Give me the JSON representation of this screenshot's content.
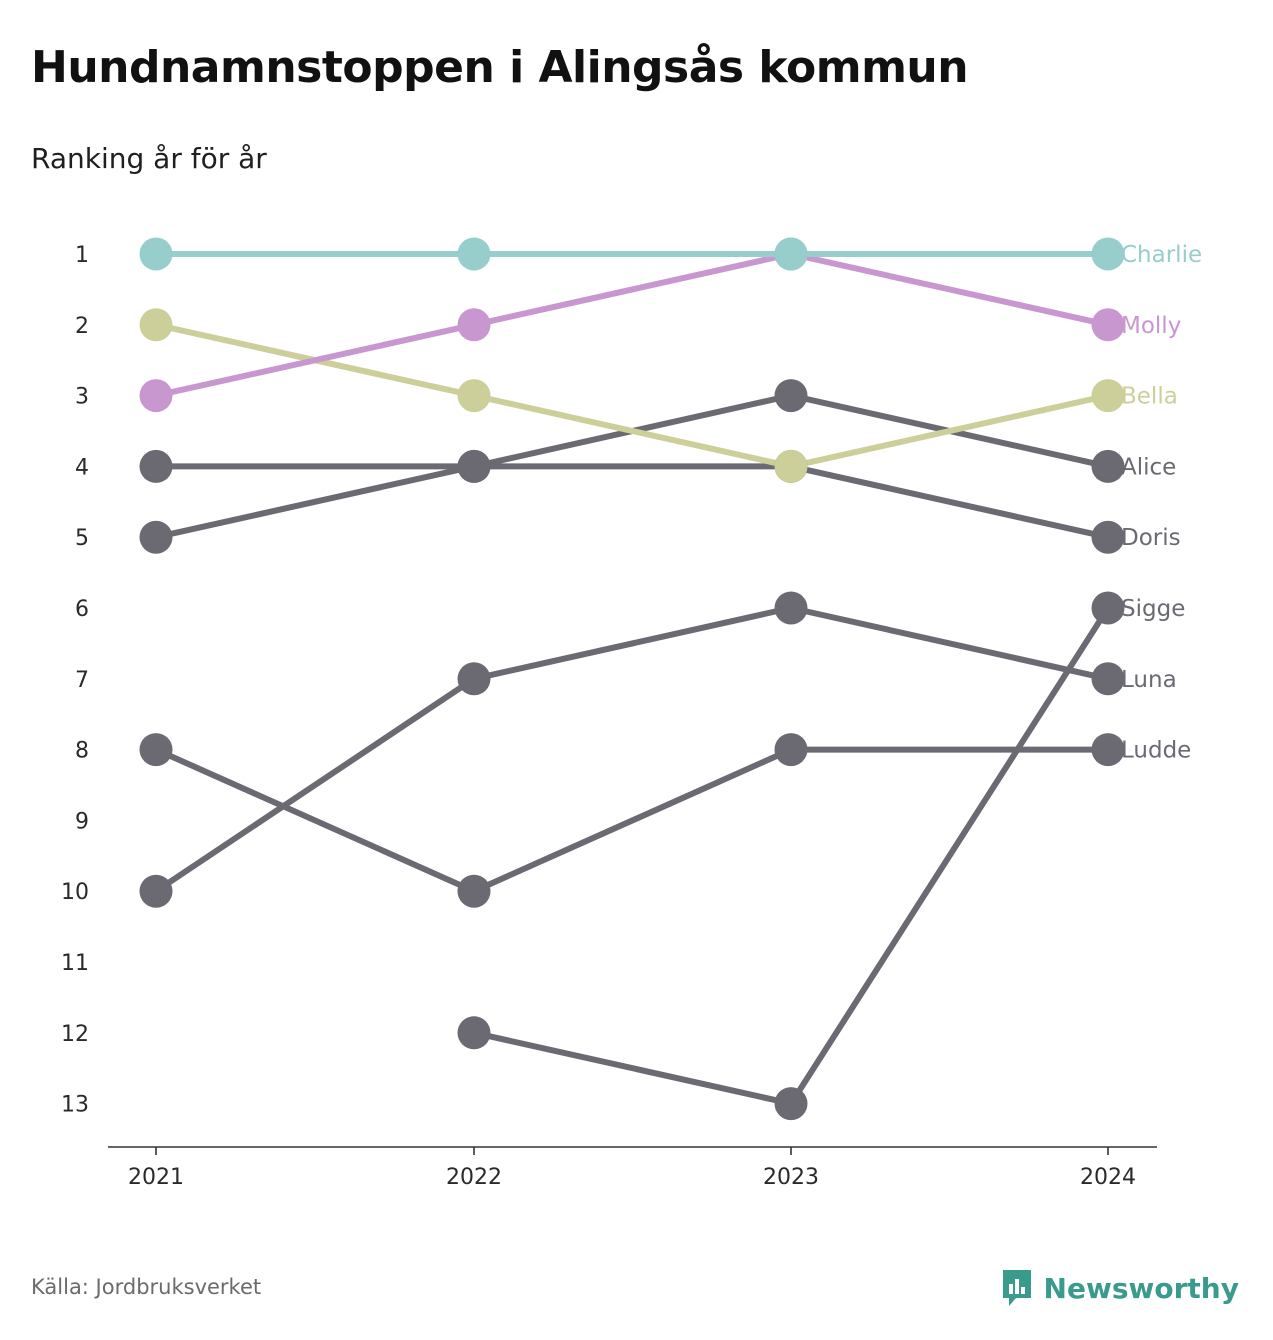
{
  "title": "Hundnamnstoppen i Alingsås kommun",
  "subtitle": "Ranking år för år",
  "source": "Källa: Jordbruksverket",
  "brand": {
    "name": "Newsworthy",
    "icon": "newsworthy-logo-icon",
    "color": "#3a9a8c"
  },
  "chart_data": {
    "type": "line",
    "subtype": "bump",
    "x": [
      "2021",
      "2022",
      "2023",
      "2024"
    ],
    "y_ticks": [
      1,
      2,
      3,
      4,
      5,
      6,
      7,
      8,
      9,
      10,
      11,
      12,
      13
    ],
    "ylim": [
      1,
      13
    ],
    "y_reversed": true,
    "grid": false,
    "legend": "direct-labels-right",
    "series": [
      {
        "name": "Sigge",
        "color": "#6b6a72",
        "values": [
          null,
          12,
          13,
          6
        ]
      },
      {
        "name": "Luna",
        "color": "#6b6a72",
        "values": [
          10,
          7,
          6,
          7
        ]
      },
      {
        "name": "Ludde",
        "color": "#6b6a72",
        "values": [
          8,
          10,
          8,
          8
        ]
      },
      {
        "name": "Alice",
        "color": "#6b6a72",
        "values": [
          5,
          4,
          3,
          4
        ]
      },
      {
        "name": "Doris",
        "color": "#6b6a72",
        "values": [
          4,
          4,
          4,
          5
        ]
      },
      {
        "name": "Bella",
        "color": "#cdcf9a",
        "values": [
          2,
          3,
          4,
          3
        ]
      },
      {
        "name": "Molly",
        "color": "#c997cf",
        "values": [
          3,
          2,
          1,
          2
        ]
      },
      {
        "name": "Charlie",
        "color": "#97cdcb",
        "values": [
          1,
          1,
          1,
          1
        ]
      }
    ]
  }
}
